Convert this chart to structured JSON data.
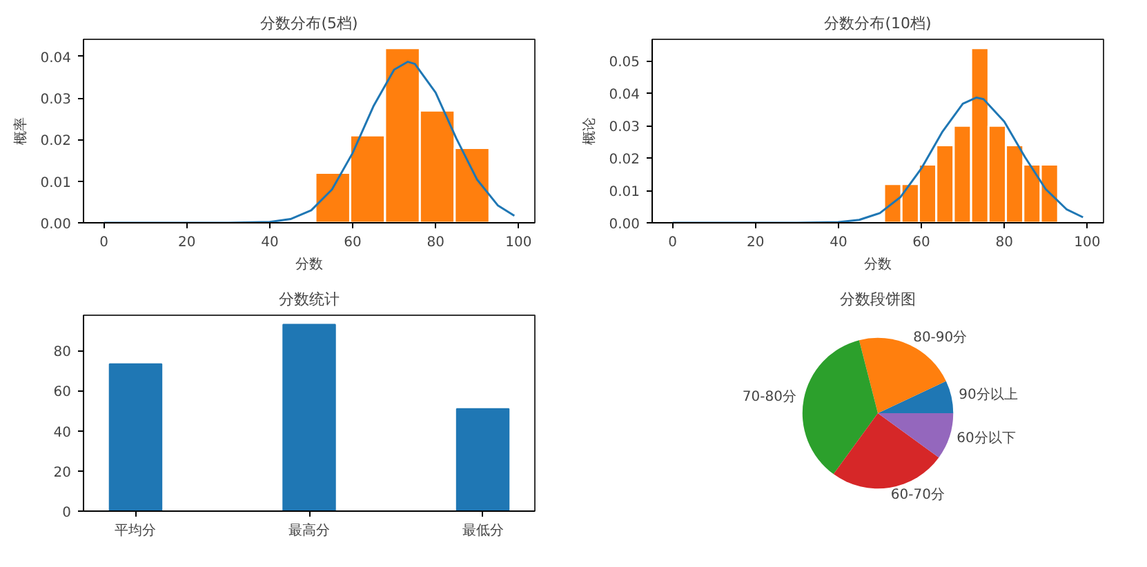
{
  "chart_data": [
    {
      "type": "histogram",
      "title": "分数分布(5档)",
      "xlabel": "分数",
      "ylabel": "概率",
      "bins": [
        51,
        59.4,
        67.8,
        76.2,
        84.6,
        93
      ],
      "values": [
        0.012,
        0.021,
        0.042,
        0.027,
        0.018
      ],
      "color": "#ff7f0e",
      "series": [
        {
          "type": "line",
          "color": "#1f77b4",
          "x": [
            0,
            10,
            20,
            30,
            40,
            45,
            50,
            55,
            60,
            65,
            70,
            73.3,
            75,
            80,
            85,
            90,
            95,
            99
          ],
          "values": [
            0,
            0,
            0,
            0,
            0.0002,
            0.0009,
            0.003,
            0.008,
            0.0168,
            0.028,
            0.0368,
            0.0387,
            0.0382,
            0.0313,
            0.0203,
            0.0104,
            0.0042,
            0.0017
          ]
        }
      ],
      "xlim": [
        -4.95,
        103.95
      ],
      "ylim": [
        0,
        0.0441
      ],
      "xticks": [
        0,
        20,
        40,
        60,
        80,
        100
      ],
      "yticks": [
        {
          "value": 0,
          "label": "0.00"
        },
        {
          "value": 0.01,
          "label": "0.01"
        },
        {
          "value": 0.02,
          "label": "0.02"
        },
        {
          "value": 0.03,
          "label": "0.03"
        },
        {
          "value": 0.04,
          "label": "0.04"
        }
      ],
      "grid": false
    },
    {
      "type": "histogram",
      "title": "分数分布(10档)",
      "xlabel": "分数",
      "ylabel": "概论",
      "bins": [
        51,
        55.2,
        59.4,
        63.6,
        67.8,
        72,
        76.2,
        80.4,
        84.6,
        88.8,
        93
      ],
      "values": [
        0.012,
        0.012,
        0.018,
        0.024,
        0.03,
        0.054,
        0.03,
        0.024,
        0.018,
        0.018
      ],
      "color": "#ff7f0e",
      "series": [
        {
          "type": "line",
          "color": "#1f77b4",
          "x": [
            0,
            10,
            20,
            30,
            40,
            45,
            50,
            55,
            60,
            65,
            70,
            73.3,
            75,
            80,
            85,
            90,
            95,
            99
          ],
          "values": [
            0,
            0,
            0,
            0,
            0.0002,
            0.0009,
            0.003,
            0.008,
            0.0168,
            0.028,
            0.0368,
            0.0387,
            0.0382,
            0.0313,
            0.0203,
            0.0104,
            0.0042,
            0.0017
          ]
        }
      ],
      "xlim": [
        -4.95,
        103.95
      ],
      "ylim": [
        0,
        0.0567
      ],
      "xticks": [
        0,
        20,
        40,
        60,
        80,
        100
      ],
      "yticks": [
        {
          "value": 0,
          "label": "0.00"
        },
        {
          "value": 0.01,
          "label": "0.01"
        },
        {
          "value": 0.02,
          "label": "0.02"
        },
        {
          "value": 0.03,
          "label": "0.03"
        },
        {
          "value": 0.04,
          "label": "0.04"
        },
        {
          "value": 0.05,
          "label": "0.05"
        }
      ],
      "grid": false
    },
    {
      "type": "bar",
      "title": "分数统计",
      "categories": [
        "平均分",
        "最高分",
        "最低分"
      ],
      "values": [
        73.3,
        93,
        51
      ],
      "color": "#1f77b4",
      "ylim": [
        0,
        97.65
      ],
      "yticks": [
        0,
        20,
        40,
        60,
        80
      ],
      "grid": false
    },
    {
      "type": "pie",
      "title": "分数段饼图",
      "categories": [
        "90分以上",
        "80-90分",
        "70-80分",
        "60-70分",
        "60分以下"
      ],
      "values": [
        7,
        22,
        36,
        25,
        10
      ],
      "colors": [
        "#1f77b4",
        "#ff7f0e",
        "#2ca02c",
        "#d62728",
        "#9467bd"
      ]
    }
  ]
}
